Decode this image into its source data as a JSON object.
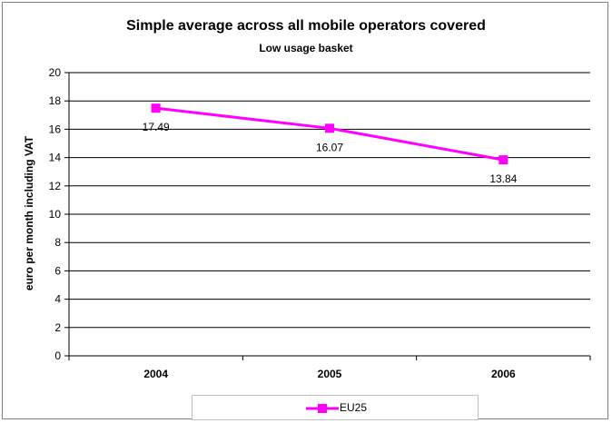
{
  "chart_data": {
    "type": "line",
    "title": "Simple average across all mobile operators covered",
    "subtitle": "Low usage basket",
    "xlabel": "",
    "ylabel": "euro per month including VAT",
    "categories": [
      "2004",
      "2005",
      "2006"
    ],
    "series": [
      {
        "name": "EU25",
        "values": [
          17.49,
          16.07,
          13.84
        ],
        "color": "#ff00ff",
        "data_labels": [
          "17.49",
          "16.07",
          "13.84"
        ]
      }
    ],
    "ylim": [
      0,
      20
    ],
    "yticks": [
      0,
      2,
      4,
      6,
      8,
      10,
      12,
      14,
      16,
      18,
      20
    ],
    "grid": true,
    "legend": "bottom"
  }
}
